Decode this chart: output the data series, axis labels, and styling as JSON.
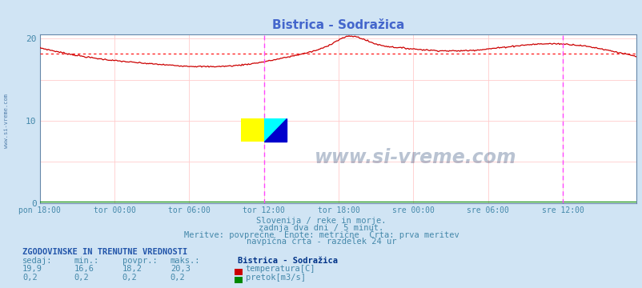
{
  "title": "Bistrica - Sodražica",
  "bg_color": "#d0e4f4",
  "plot_bg_color": "#ffffff",
  "grid_color_h": "#ffcccc",
  "grid_color_v": "#ffcccc",
  "xlabel_ticks": [
    "pon 18:00",
    "tor 00:00",
    "tor 06:00",
    "tor 12:00",
    "tor 18:00",
    "sre 00:00",
    "sre 06:00",
    "sre 12:00"
  ],
  "ylim": [
    0,
    20.5
  ],
  "yticks": [
    0,
    10,
    20
  ],
  "n_points": 576,
  "temp_min": 16.6,
  "temp_max": 20.3,
  "temp_avg": 18.2,
  "temp_curr": 19.9,
  "flow_min": 0.2,
  "flow_max": 0.2,
  "flow_avg": 0.2,
  "flow_curr": 0.2,
  "subtitle1": "Slovenija / reke in morje.",
  "subtitle2": "zadnja dva dni / 5 minut.",
  "subtitle3": "Meritve: povprečne  Enote: metrične  Črta: prva meritev",
  "subtitle4": "navpična črta - razdelek 24 ur",
  "legend_title": "ZGODOVINSKE IN TRENUTNE VREDNOSTI",
  "col_headers": [
    "sedaj:",
    "min.:",
    "povpr.:",
    "maks.:"
  ],
  "station_name": "Bistrica - Sodražica",
  "temp_label": "temperatura[C]",
  "flow_label": "pretok[m3/s]",
  "temp_color": "#cc0000",
  "flow_color": "#008800",
  "avg_line_color": "#ff0000",
  "vline_color": "#ff44ff",
  "title_color": "#4466cc",
  "text_color": "#4488aa",
  "label_bold_color": "#003388",
  "legend_header_color": "#2255aa",
  "axis_color": "#6688aa"
}
